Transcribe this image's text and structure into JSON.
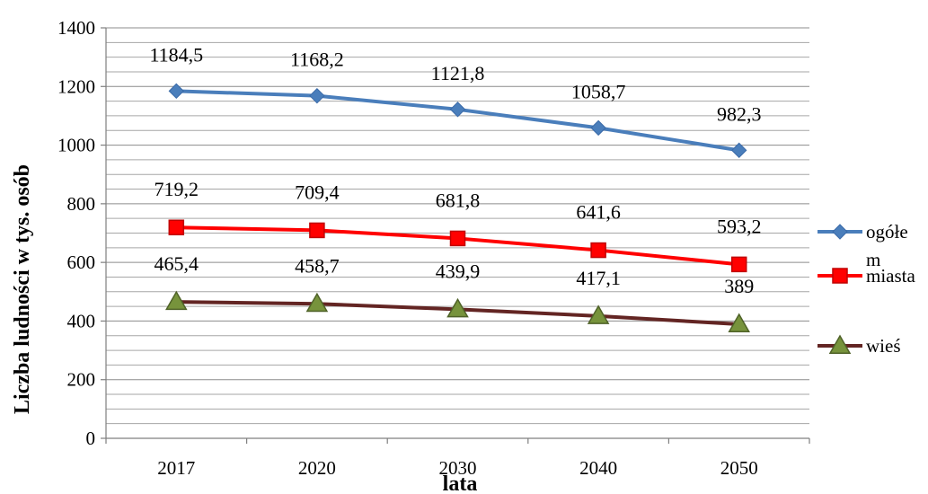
{
  "chart_data": {
    "type": "line",
    "categories": [
      "2017",
      "2020",
      "2030",
      "2040",
      "2050"
    ],
    "xlabel": "lata",
    "ylabel": "Liczba ludności w tys. osób",
    "ylim": [
      0,
      1400
    ],
    "yticks": [
      0,
      200,
      400,
      600,
      800,
      1000,
      1200,
      1400
    ],
    "grid": "horizontal minor lines every 50",
    "legend_position": "right",
    "series": [
      {
        "name": "ogółem",
        "legend_lines": [
          "ogółe",
          "m"
        ],
        "values": [
          1184.5,
          1168.2,
          1121.8,
          1058.7,
          982.3
        ],
        "labels": [
          "1184,5",
          "1168,2",
          "1121,8",
          "1058,7",
          "982,3"
        ],
        "color": "#4a7ebb",
        "marker": "diamond",
        "marker_fill": "#4a7ebb"
      },
      {
        "name": "miasta",
        "legend_lines": [
          "miasta"
        ],
        "values": [
          719.2,
          709.4,
          681.8,
          641.6,
          593.2
        ],
        "labels": [
          "719,2",
          "709,4",
          "681,8",
          "641,6",
          "593,2"
        ],
        "color": "#ff0000",
        "marker": "square",
        "marker_fill": "#ff0000"
      },
      {
        "name": "wieś",
        "legend_lines": [
          "wieś"
        ],
        "values": [
          465.4,
          458.7,
          439.9,
          417.1,
          389
        ],
        "labels": [
          "465,4",
          "458,7",
          "439,9",
          "417,1",
          "389"
        ],
        "color": "#632523",
        "marker": "triangle",
        "marker_fill": "#77933c"
      }
    ]
  }
}
